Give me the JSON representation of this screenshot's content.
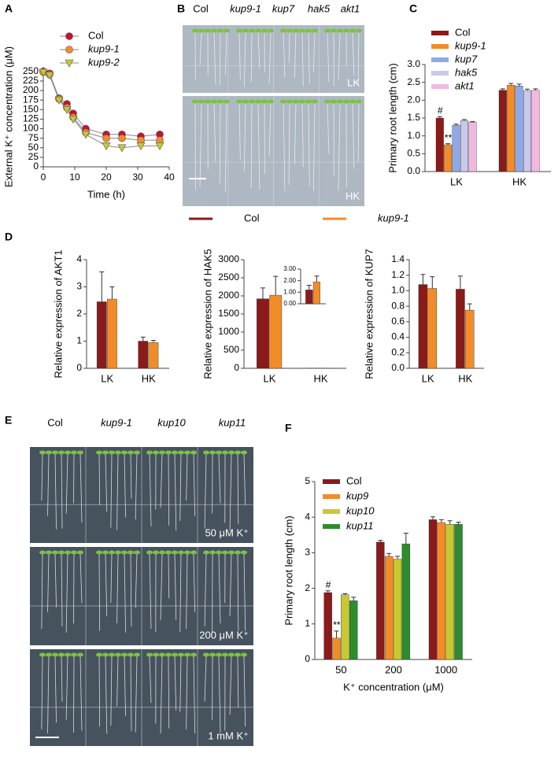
{
  "chart_data": [
    {
      "type": "line",
      "panel": "A",
      "x_title": "Time (h)",
      "y_title": "External K⁺ concentration (μM)",
      "xlim": [
        0,
        40
      ],
      "xticks": [
        0,
        10,
        20,
        30,
        40
      ],
      "ylim": [
        0,
        262
      ],
      "yticks": [
        0,
        25,
        50,
        75,
        100,
        125,
        150,
        175,
        200,
        225,
        250
      ],
      "x": [
        0,
        2,
        5,
        7.5,
        9.5,
        13.5,
        20,
        25,
        31,
        37
      ],
      "legend": "upper center",
      "series": [
        {
          "name": "Col",
          "color": "#c8102e",
          "marker": "circle",
          "values": [
            250,
            245,
            180,
            165,
            140,
            100,
            85,
            85,
            80,
            85
          ]
        },
        {
          "name": "kup9-1",
          "color": "#f28c28",
          "marker": "circle",
          "values": [
            248,
            242,
            178,
            155,
            130,
            90,
            75,
            75,
            70,
            70
          ]
        },
        {
          "name": "kup9-2",
          "color": "#c8c832",
          "marker": "triangle",
          "values": [
            248,
            240,
            175,
            150,
            125,
            85,
            55,
            50,
            55,
            55
          ]
        }
      ]
    },
    {
      "type": "bar",
      "panel": "C",
      "y_title": "Primary root length (cm)",
      "categories": [
        "LK",
        "HK"
      ],
      "ylim": [
        0,
        3
      ],
      "yticks": [
        {
          "value": 0,
          "label": "0.0"
        },
        {
          "value": 0.5,
          "label": "0.5"
        },
        {
          "value": 1,
          "label": "1.0"
        },
        {
          "value": 1.5,
          "label": "1.5"
        },
        {
          "value": 2,
          "label": "2.0"
        },
        {
          "value": 2.5,
          "label": "2.5"
        },
        {
          "value": 3,
          "label": "3.0"
        }
      ],
      "legend": "upper left",
      "series": [
        {
          "name": "Col",
          "color": "#8b1a1a",
          "values": [
            1.5,
            2.28
          ],
          "errors": [
            0.04,
            0.04
          ]
        },
        {
          "name": "kup9-1",
          "color": "#f28c28",
          "values": [
            0.75,
            2.42
          ],
          "errors": [
            0.03,
            0.05
          ]
        },
        {
          "name": "kup7",
          "color": "#8ea9e8",
          "values": [
            1.3,
            2.4
          ],
          "errors": [
            0.03,
            0.05
          ]
        },
        {
          "name": "hak5",
          "color": "#c9c9ec",
          "values": [
            1.43,
            2.27
          ],
          "errors": [
            0.03,
            0.04
          ]
        },
        {
          "name": "akt1",
          "color": "#f2b8e0",
          "values": [
            1.38,
            2.28
          ],
          "errors": [
            0.02,
            0.04
          ]
        }
      ],
      "annotations": [
        {
          "text": "#",
          "category": "LK",
          "series": "Col"
        },
        {
          "text": "**",
          "category": "LK",
          "series": "kup9-1"
        }
      ]
    },
    {
      "type": "bar",
      "panel": "D",
      "y_title": "Relative expression of AKT1",
      "categories": [
        "LK",
        "HK"
      ],
      "ylim": [
        0,
        4
      ],
      "yticks": [
        0,
        1,
        2,
        3,
        4
      ],
      "legend": "above",
      "series": [
        {
          "name": "Col",
          "color": "#8b1a1a",
          "values": [
            2.45,
            1.0
          ],
          "errors": [
            1.1,
            0.15
          ]
        },
        {
          "name": "kup9-1",
          "color": "#f28c28",
          "values": [
            2.55,
            0.95
          ],
          "errors": [
            0.45,
            0.08
          ]
        }
      ]
    },
    {
      "type": "bar",
      "y_title": "Relative expression of HAK5",
      "categories": [
        "LK",
        "HK"
      ],
      "ylim": [
        0,
        3000
      ],
      "yticks": [
        0,
        500,
        1000,
        1500,
        2000,
        2500,
        3000
      ],
      "series": [
        {
          "color": "#8b1a1a",
          "values": [
            1920,
            1.2
          ],
          "errors": [
            300,
            null
          ]
        },
        {
          "color": "#f28c28",
          "values": [
            2020,
            1.9
          ],
          "errors": [
            520,
            null
          ]
        }
      ],
      "inset": {
        "ylim": [
          0,
          3
        ],
        "yticks": [
          {
            "value": 0,
            "label": "0.00"
          },
          {
            "value": 1,
            "label": "1.00"
          },
          {
            "value": 2,
            "label": "2.00"
          },
          {
            "value": 3,
            "label": "3.00"
          }
        ],
        "series": [
          {
            "color": "#8b1a1a",
            "values": [
              1.2
            ],
            "errors": [
              0.4
            ]
          },
          {
            "color": "#f28c28",
            "values": [
              1.9
            ],
            "errors": [
              0.5
            ]
          }
        ]
      }
    },
    {
      "type": "bar",
      "y_title": "Relative expression of KUP7",
      "categories": [
        "LK",
        "HK"
      ],
      "ylim": [
        0,
        1.4
      ],
      "yticks": [
        {
          "value": 0,
          "label": "0.0"
        },
        {
          "value": 0.2,
          "label": "0.2"
        },
        {
          "value": 0.4,
          "label": "0.4"
        },
        {
          "value": 0.6,
          "label": "0.6"
        },
        {
          "value": 0.8,
          "label": "0.8"
        },
        {
          "value": 1,
          "label": "1.0"
        },
        {
          "value": 1.2,
          "label": "1.2"
        },
        {
          "value": 1.4,
          "label": "1.4"
        }
      ],
      "series": [
        {
          "color": "#8b1a1a",
          "values": [
            1.08,
            1.02
          ],
          "errors": [
            0.13,
            0.17
          ]
        },
        {
          "color": "#f28c28",
          "values": [
            1.03,
            0.75
          ],
          "errors": [
            0.15,
            0.08
          ]
        }
      ]
    },
    {
      "type": "bar",
      "panel": "F",
      "y_title": "Primary root length (cm)",
      "x_title": "K⁺ concentration (μM)",
      "categories": [
        "50",
        "200",
        "1000"
      ],
      "ylim": [
        0,
        5
      ],
      "yticks": [
        0,
        1,
        2,
        3,
        4,
        5
      ],
      "legend": "upper left",
      "series": [
        {
          "name": "Col",
          "color": "#8b1a1a",
          "values": [
            1.88,
            3.3,
            3.93
          ],
          "errors": [
            0.05,
            0.05,
            0.08
          ]
        },
        {
          "name": "kup9",
          "color": "#f28c28",
          "values": [
            0.6,
            2.9,
            3.85
          ],
          "errors": [
            0.2,
            0.08,
            0.08
          ]
        },
        {
          "name": "kup10",
          "color": "#c8c832",
          "values": [
            1.82,
            2.82,
            3.8
          ],
          "errors": [
            0.03,
            0.08,
            0.1
          ]
        },
        {
          "name": "kup11",
          "color": "#2e8b2e",
          "values": [
            1.65,
            3.25,
            3.8
          ],
          "errors": [
            0.1,
            0.3,
            0.06
          ]
        }
      ],
      "annotations": [
        {
          "text": "#",
          "category": "50",
          "series": "Col"
        },
        {
          "text": "**",
          "category": "50",
          "series": "kup9"
        }
      ]
    }
  ],
  "photos": [
    {
      "panel": "B",
      "labels": [
        "Col",
        "kup9-1",
        "kup7",
        "hak5",
        "akt1"
      ],
      "plate_labels": [
        "LK",
        "HK"
      ]
    },
    {
      "panel": "E",
      "labels": [
        "Col",
        "kup9-1",
        "kup10",
        "kup11"
      ],
      "plate_labels": [
        "50 μM K⁺",
        "200 μM K⁺",
        "1 mM K⁺"
      ]
    }
  ]
}
